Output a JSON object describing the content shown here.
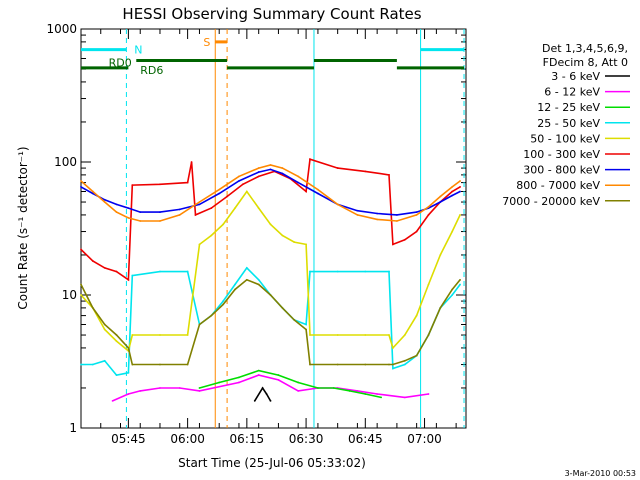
{
  "chart_data": {
    "type": "line",
    "title": "HESSI Observing Summary Count Rates",
    "xlabel": "Start Time (25-Jul-06 05:33:02)",
    "ylabel": "Count Rate (s⁻¹ detector⁻¹)",
    "x_unit": "minutes after 05:33:02",
    "xlim": [
      0,
      97.5
    ],
    "ylim": [
      1,
      1000
    ],
    "yscale": "log",
    "x_ticks": [
      {
        "x": 12,
        "label": "05:45"
      },
      {
        "x": 27,
        "label": "06:00"
      },
      {
        "x": 42,
        "label": "06:15"
      },
      {
        "x": 57,
        "label": "06:30"
      },
      {
        "x": 72,
        "label": "06:45"
      },
      {
        "x": 87,
        "label": "07:00"
      }
    ],
    "y_ticks": [
      {
        "y": 1,
        "label": "1"
      },
      {
        "y": 10,
        "label": "10"
      },
      {
        "y": 100,
        "label": "100"
      },
      {
        "y": 1000,
        "label": "1000"
      }
    ],
    "legend_header": [
      "Det 1,3,4,5,6,9,",
      "FDecim 8, Att 0"
    ],
    "legend_position": "right",
    "series": [
      {
        "name": "3 - 6 keV",
        "color": "#000000",
        "points": [
          [
            44,
            1.6
          ],
          [
            46,
            2.0
          ],
          [
            47,
            1.8
          ],
          [
            48,
            1.6
          ]
        ]
      },
      {
        "name": "6 - 12 keV",
        "color": "#ff00ff",
        "points": [
          [
            8,
            1.6
          ],
          [
            12,
            1.8
          ],
          [
            15,
            1.9
          ],
          [
            20,
            2.0
          ],
          [
            25,
            2.0
          ],
          [
            30,
            1.9
          ],
          [
            40,
            2.2
          ],
          [
            45,
            2.5
          ],
          [
            50,
            2.3
          ],
          [
            55,
            1.9
          ],
          [
            60,
            2.0
          ],
          [
            65,
            2.0
          ],
          [
            70,
            1.9
          ],
          [
            75,
            1.8
          ],
          [
            82,
            1.7
          ],
          [
            88,
            1.8
          ]
        ]
      },
      {
        "name": "12 - 25 keV",
        "color": "#00dd00",
        "points": [
          [
            30,
            2.0
          ],
          [
            35,
            2.2
          ],
          [
            40,
            2.4
          ],
          [
            45,
            2.7
          ],
          [
            50,
            2.5
          ],
          [
            55,
            2.2
          ],
          [
            60,
            2.0
          ],
          [
            64,
            2.0
          ],
          [
            68,
            1.9
          ],
          [
            72,
            1.8
          ],
          [
            76,
            1.7
          ]
        ]
      },
      {
        "name": "25 - 50 keV",
        "color": "#00e5ee",
        "points": [
          [
            0,
            3.0
          ],
          [
            3,
            3.0
          ],
          [
            6,
            3.2
          ],
          [
            9,
            2.5
          ],
          [
            12,
            2.6
          ],
          [
            13,
            14
          ],
          [
            20,
            15
          ],
          [
            27,
            15
          ],
          [
            30,
            6.0
          ],
          [
            33,
            7.0
          ],
          [
            36,
            9.0
          ],
          [
            39,
            12
          ],
          [
            42,
            16
          ],
          [
            45,
            13
          ],
          [
            48,
            10
          ],
          [
            51,
            8.0
          ],
          [
            54,
            6.5
          ],
          [
            57,
            6.0
          ],
          [
            58,
            15
          ],
          [
            65,
            15
          ],
          [
            72,
            15
          ],
          [
            78,
            15
          ],
          [
            79,
            2.8
          ],
          [
            82,
            3.0
          ],
          [
            85,
            3.5
          ],
          [
            88,
            5.0
          ],
          [
            91,
            8.0
          ],
          [
            94,
            10
          ],
          [
            96,
            12
          ]
        ]
      },
      {
        "name": "50 - 100 keV",
        "color": "#dddd00",
        "points": [
          [
            0,
            10
          ],
          [
            3,
            8.0
          ],
          [
            6,
            5.5
          ],
          [
            9,
            4.5
          ],
          [
            12,
            3.8
          ],
          [
            13,
            5.0
          ],
          [
            20,
            5.0
          ],
          [
            27,
            5.0
          ],
          [
            30,
            24
          ],
          [
            33,
            28
          ],
          [
            36,
            34
          ],
          [
            39,
            45
          ],
          [
            42,
            60
          ],
          [
            45,
            45
          ],
          [
            48,
            34
          ],
          [
            51,
            28
          ],
          [
            54,
            25
          ],
          [
            57,
            24
          ],
          [
            58,
            5.0
          ],
          [
            65,
            5.0
          ],
          [
            72,
            5.0
          ],
          [
            78,
            5.0
          ],
          [
            79,
            4.0
          ],
          [
            82,
            5.0
          ],
          [
            85,
            7.0
          ],
          [
            88,
            12
          ],
          [
            91,
            20
          ],
          [
            94,
            30
          ],
          [
            96,
            40
          ]
        ]
      },
      {
        "name": "100 - 300 keV",
        "color": "#ee0000",
        "points": [
          [
            0,
            22
          ],
          [
            3,
            18
          ],
          [
            6,
            16
          ],
          [
            9,
            15
          ],
          [
            12,
            13
          ],
          [
            13,
            67
          ],
          [
            20,
            68
          ],
          [
            27,
            70
          ],
          [
            28,
            100
          ],
          [
            29,
            40
          ],
          [
            33,
            45
          ],
          [
            37,
            55
          ],
          [
            41,
            68
          ],
          [
            45,
            78
          ],
          [
            49,
            85
          ],
          [
            53,
            75
          ],
          [
            57,
            60
          ],
          [
            58,
            105
          ],
          [
            65,
            90
          ],
          [
            72,
            85
          ],
          [
            78,
            80
          ],
          [
            79,
            24
          ],
          [
            82,
            26
          ],
          [
            85,
            30
          ],
          [
            88,
            40
          ],
          [
            91,
            50
          ],
          [
            94,
            60
          ],
          [
            96,
            65
          ]
        ]
      },
      {
        "name": "300 - 800 keV",
        "color": "#0000ee",
        "points": [
          [
            0,
            65
          ],
          [
            3,
            58
          ],
          [
            6,
            52
          ],
          [
            9,
            48
          ],
          [
            12,
            45
          ],
          [
            15,
            42
          ],
          [
            20,
            42
          ],
          [
            25,
            44
          ],
          [
            30,
            48
          ],
          [
            35,
            58
          ],
          [
            40,
            72
          ],
          [
            45,
            84
          ],
          [
            48,
            88
          ],
          [
            51,
            82
          ],
          [
            55,
            70
          ],
          [
            60,
            58
          ],
          [
            65,
            48
          ],
          [
            70,
            43
          ],
          [
            75,
            41
          ],
          [
            80,
            40
          ],
          [
            85,
            42
          ],
          [
            88,
            45
          ],
          [
            91,
            50
          ],
          [
            94,
            56
          ],
          [
            96,
            60
          ]
        ]
      },
      {
        "name": "800 - 7000 keV",
        "color": "#ff8800",
        "points": [
          [
            0,
            72
          ],
          [
            3,
            60
          ],
          [
            6,
            50
          ],
          [
            9,
            42
          ],
          [
            12,
            38
          ],
          [
            15,
            36
          ],
          [
            20,
            36
          ],
          [
            25,
            40
          ],
          [
            30,
            50
          ],
          [
            35,
            62
          ],
          [
            40,
            78
          ],
          [
            45,
            90
          ],
          [
            48,
            95
          ],
          [
            51,
            90
          ],
          [
            55,
            78
          ],
          [
            60,
            62
          ],
          [
            65,
            48
          ],
          [
            70,
            40
          ],
          [
            75,
            37
          ],
          [
            80,
            36
          ],
          [
            85,
            40
          ],
          [
            88,
            46
          ],
          [
            91,
            55
          ],
          [
            94,
            65
          ],
          [
            96,
            72
          ]
        ]
      },
      {
        "name": "7000 - 20000 keV",
        "color": "#808000",
        "points": [
          [
            0,
            12
          ],
          [
            3,
            8.0
          ],
          [
            6,
            6.0
          ],
          [
            9,
            5.0
          ],
          [
            12,
            4.0
          ],
          [
            13,
            3.0
          ],
          [
            20,
            3.0
          ],
          [
            27,
            3.0
          ],
          [
            30,
            6.0
          ],
          [
            33,
            7.0
          ],
          [
            36,
            8.5
          ],
          [
            39,
            11
          ],
          [
            42,
            13
          ],
          [
            45,
            12
          ],
          [
            48,
            10
          ],
          [
            51,
            8.0
          ],
          [
            54,
            6.5
          ],
          [
            57,
            5.5
          ],
          [
            58,
            3.0
          ],
          [
            65,
            3.0
          ],
          [
            72,
            3.0
          ],
          [
            78,
            3.0
          ],
          [
            79,
            3.0
          ],
          [
            82,
            3.2
          ],
          [
            85,
            3.5
          ],
          [
            88,
            5.0
          ],
          [
            91,
            8.0
          ],
          [
            94,
            11
          ],
          [
            96,
            13
          ]
        ]
      }
    ],
    "annotations": [
      {
        "text": "N",
        "color": "#00e5ee",
        "x": 13.5,
        "y": 700
      },
      {
        "text": "S",
        "color": "#ff8800",
        "x": 31,
        "y": 800
      },
      {
        "text": "RD0",
        "color": "#006400",
        "x": 7,
        "y": 560
      },
      {
        "text": "RD6",
        "color": "#006400",
        "x": 15,
        "y": 490
      }
    ],
    "segments": [
      {
        "color": "#00e5ee",
        "x0": 0,
        "x1": 11.5,
        "y": 700
      },
      {
        "color": "#00e5ee",
        "x0": 86,
        "x1": 97,
        "y": 700
      },
      {
        "color": "#ff8800",
        "x0": 34,
        "x1": 37,
        "y": 800
      },
      {
        "color": "#006400",
        "x0": 0,
        "x1": 12,
        "y": 510
      },
      {
        "color": "#006400",
        "x0": 14,
        "x1": 37,
        "y": 580
      },
      {
        "color": "#006400",
        "x0": 37,
        "x1": 59,
        "y": 510
      },
      {
        "color": "#006400",
        "x0": 59,
        "x1": 80,
        "y": 580
      },
      {
        "color": "#006400",
        "x0": 80,
        "x1": 97,
        "y": 510
      }
    ],
    "vlines": [
      {
        "color": "#00e5ee",
        "x": 11.5,
        "dashed": true
      },
      {
        "color": "#00e5ee",
        "x": 59,
        "dashed": false
      },
      {
        "color": "#00e5ee",
        "x": 86,
        "dashed": false
      },
      {
        "color": "#00e5ee",
        "x": 97,
        "dashed": true
      },
      {
        "color": "#ff8800",
        "x": 34,
        "dashed": false
      },
      {
        "color": "#ff8800",
        "x": 37,
        "dashed": true
      }
    ]
  },
  "footer_date": "3-Mar-2010 00:53"
}
